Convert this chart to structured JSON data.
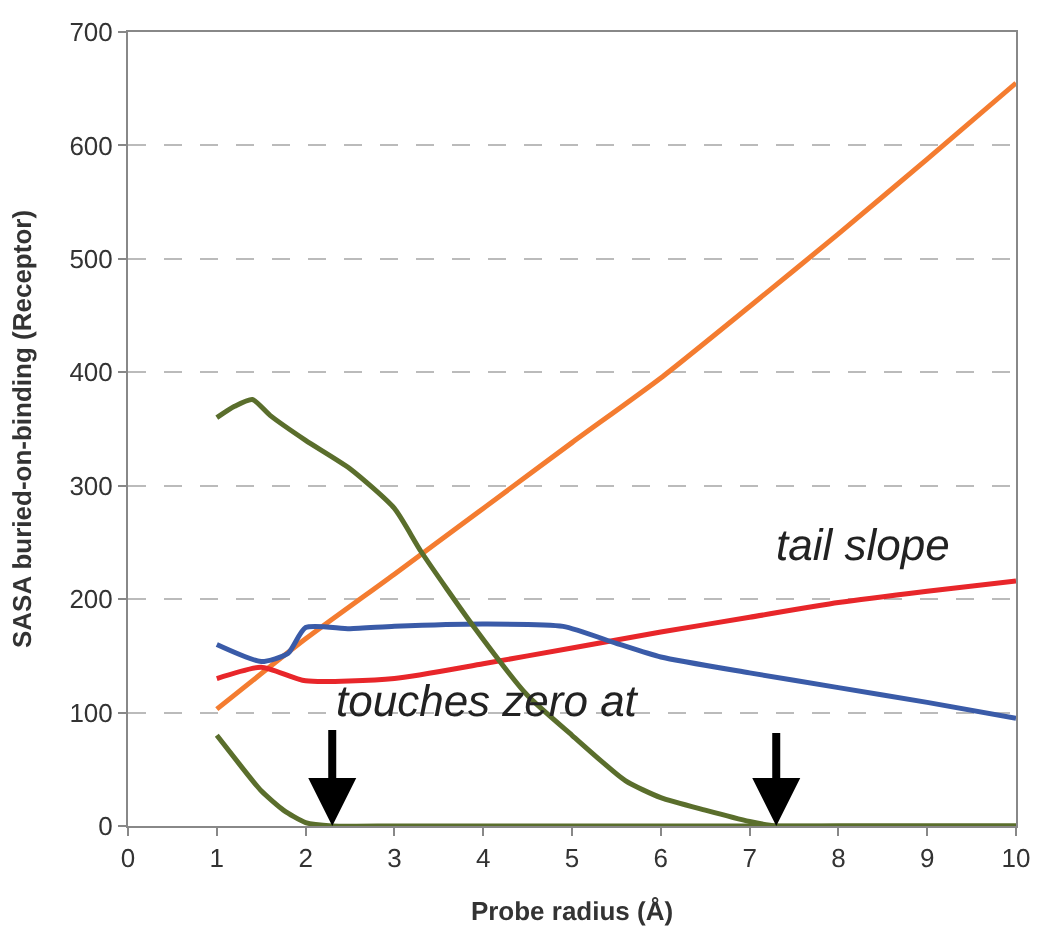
{
  "chart_data": {
    "type": "line",
    "xlabel": "Probe radius (Å)",
    "ylabel": "SASA buried-on-binding (Receptor)",
    "xlim": [
      0,
      10
    ],
    "xticks": [
      0,
      1,
      2,
      3,
      4,
      5,
      6,
      7,
      8,
      9,
      10
    ],
    "ylim": [
      0,
      700
    ],
    "yticks": [
      0,
      100,
      200,
      300,
      400,
      500,
      600,
      700
    ],
    "grid": "y",
    "marker": "none",
    "line_style": "solid",
    "series": [
      {
        "color": "#f47c30",
        "x": [
          1,
          2,
          3,
          4,
          5,
          6,
          7,
          8,
          9,
          10
        ],
        "values": [
          103,
          165,
          222,
          280,
          338,
          395,
          458,
          522,
          588,
          655
        ]
      },
      {
        "color": "#e8262a",
        "x": [
          1,
          1.5,
          2,
          3,
          4,
          5,
          6,
          7,
          8,
          9,
          10
        ],
        "values": [
          130,
          140,
          128,
          130,
          143,
          157,
          171,
          184,
          197,
          207,
          216
        ]
      },
      {
        "color": "#3a5ba8",
        "x": [
          1,
          1.5,
          1.8,
          2,
          2.5,
          3,
          4,
          4.9,
          5.5,
          6,
          7,
          8,
          9,
          10
        ],
        "values": [
          160,
          145,
          152,
          175,
          174,
          176,
          178,
          176,
          161,
          149,
          135,
          122,
          109,
          95
        ]
      },
      {
        "color": "#5a6e2c",
        "x": [
          1,
          1.2,
          1.4,
          1.6,
          2,
          2.5,
          3,
          3.3,
          3.9,
          4.5,
          5,
          5.6,
          6,
          6.5,
          7,
          7.3,
          8,
          9,
          10
        ],
        "values": [
          360,
          370,
          376,
          362,
          340,
          315,
          280,
          242,
          175,
          115,
          80,
          40,
          25,
          14,
          4,
          0,
          0,
          0,
          0
        ]
      },
      {
        "color": "#5a6e2c",
        "x": [
          1,
          1.25,
          1.5,
          1.75,
          2,
          2.3,
          3,
          4,
          5,
          6,
          7,
          8,
          9,
          10
        ],
        "values": [
          80,
          55,
          31,
          14,
          3,
          0,
          0,
          0,
          0,
          0,
          0,
          0,
          0,
          0
        ]
      }
    ],
    "annotations": [
      "tail slope",
      {
        "text": "touches zero at",
        "x": 2.3,
        "y": 0
      }
    ]
  }
}
